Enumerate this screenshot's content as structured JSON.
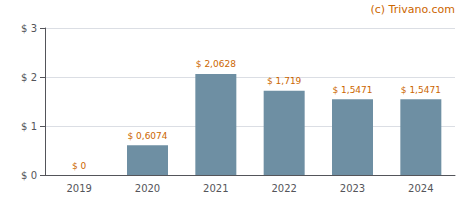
{
  "chart_data": {
    "type": "bar",
    "categories": [
      "2019",
      "2020",
      "2021",
      "2022",
      "2023",
      "2024"
    ],
    "values": [
      0.0,
      0.6074,
      2.0628,
      1.719,
      1.5471,
      1.5471
    ],
    "value_labels": [
      "$ 0",
      "$ 0,6074",
      "$ 2,0628",
      "$ 1,719",
      "$ 1,5471",
      "$ 1,5471"
    ],
    "data_labels": true,
    "color": "#6e8fa3",
    "ylim": [
      0,
      3.0
    ],
    "yticks": [
      {
        "value": 0.0,
        "label": "$ 0"
      },
      {
        "value": 1.0,
        "label": "$ 1"
      },
      {
        "value": 2.0,
        "label": "$ 2"
      },
      {
        "value": 3.0,
        "label": "$ 3"
      }
    ],
    "grid": true,
    "annotations": [
      "(c) Trivano.com"
    ]
  }
}
